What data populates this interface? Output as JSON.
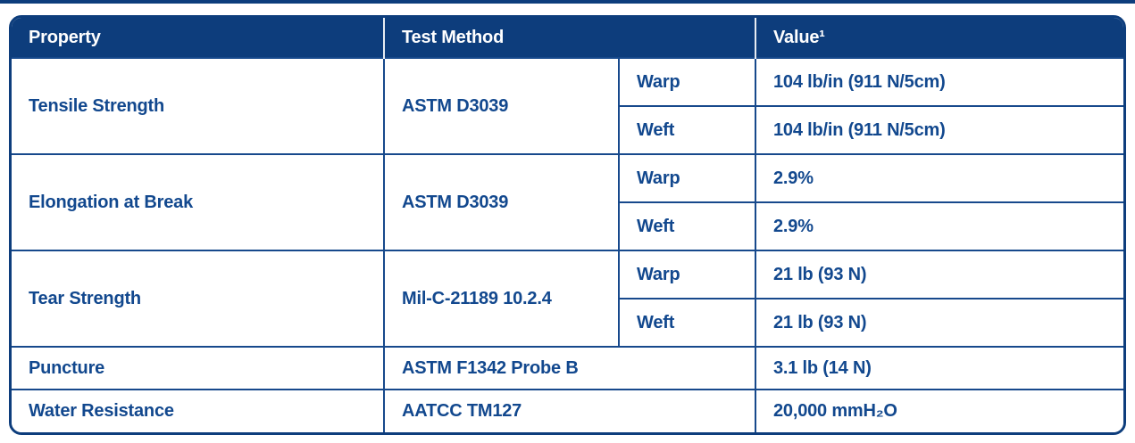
{
  "page": {
    "background": "#ffffff",
    "top_rule_color": "#0d3d7c"
  },
  "table": {
    "colors": {
      "header_bg": "#0d3d7c",
      "header_text": "#ffffff",
      "body_text": "#12488e",
      "grid_line": "#17498c"
    },
    "headers": {
      "property": "Property",
      "test_method": "Test Method",
      "value": "Value¹"
    },
    "rows": [
      {
        "property": "Tensile Strength",
        "test_method": "ASTM D3039",
        "sub": [
          {
            "direction": "Warp",
            "value": "104 lb/in (911 N/5cm)"
          },
          {
            "direction": "Weft",
            "value": "104 lb/in (911 N/5cm)"
          }
        ]
      },
      {
        "property": "Elongation at Break",
        "test_method": "ASTM D3039",
        "sub": [
          {
            "direction": "Warp",
            "value": "2.9%"
          },
          {
            "direction": "Weft",
            "value": "2.9%"
          }
        ]
      },
      {
        "property": "Tear Strength",
        "test_method": "Mil-C-21189 10.2.4",
        "sub": [
          {
            "direction": "Warp",
            "value": "21 lb (93 N)"
          },
          {
            "direction": "Weft",
            "value": "21 lb (93 N)"
          }
        ]
      },
      {
        "property": "Puncture",
        "test_method": "ASTM F1342 Probe B",
        "value": "3.1 lb (14 N)"
      },
      {
        "property": "Water Resistance",
        "test_method": "AATCC TM127",
        "value": "20,000 mmH₂O"
      }
    ]
  }
}
